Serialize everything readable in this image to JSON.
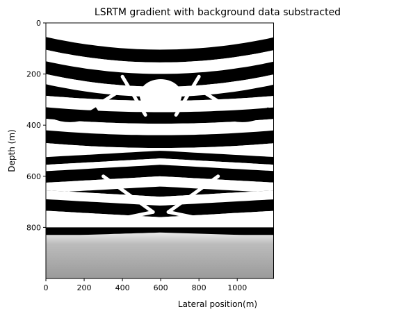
{
  "chart_data": {
    "type": "heatmap",
    "title": "LSRTM gradient with background data substracted",
    "xlabel": "Lateral position(m)",
    "ylabel": "Depth (m)",
    "xlim": [
      0,
      1190
    ],
    "ylim": [
      1000,
      0
    ],
    "x_ticks": [
      0,
      200,
      400,
      600,
      800,
      1000
    ],
    "y_ticks": [
      0,
      200,
      400,
      600,
      800
    ],
    "colormap": "gray",
    "grid": false,
    "bands": [
      {
        "y": [
          0,
          55
        ],
        "value": 1
      },
      {
        "y": [
          55,
          105
        ],
        "value": 0
      },
      {
        "y": [
          105,
          150
        ],
        "value": 1
      },
      {
        "y": [
          150,
          200
        ],
        "value": 0
      },
      {
        "y": [
          200,
          240
        ],
        "value": 1
      },
      {
        "y": [
          240,
          285
        ],
        "value": 0
      },
      {
        "y": [
          285,
          330
        ],
        "value": 1
      },
      {
        "y": [
          330,
          375
        ],
        "value": 0
      },
      {
        "y": [
          375,
          420
        ],
        "value": 1
      },
      {
        "y": [
          420,
          470
        ],
        "value": 0
      },
      {
        "y": [
          470,
          500
        ],
        "value": 1
      },
      {
        "y": [
          500,
          530
        ],
        "value": 0
      },
      {
        "y": [
          530,
          555
        ],
        "value": 1
      },
      {
        "y": [
          555,
          600
        ],
        "value": 0
      },
      {
        "y": [
          600,
          640
        ],
        "value": 1
      },
      {
        "y": [
          640,
          680
        ],
        "value": 0
      },
      {
        "y": [
          680,
          715
        ],
        "value": 1
      },
      {
        "y": [
          715,
          760
        ],
        "value": 0
      },
      {
        "y": [
          760,
          800
        ],
        "value": 1
      },
      {
        "y": [
          800,
          830
        ],
        "value": 0
      },
      {
        "y": [
          830,
          1000
        ],
        "value": 0.6
      }
    ],
    "central_bright_zone": {
      "x": [
        490,
        710
      ],
      "y": [
        220,
        345
      ],
      "value": 1
    },
    "dome_apex": {
      "x": 600,
      "y": 820
    }
  },
  "colors": {
    "white": "#ffffff",
    "black": "#000000",
    "bottom_gray": "#9a9a9a",
    "frame": "#000000"
  }
}
